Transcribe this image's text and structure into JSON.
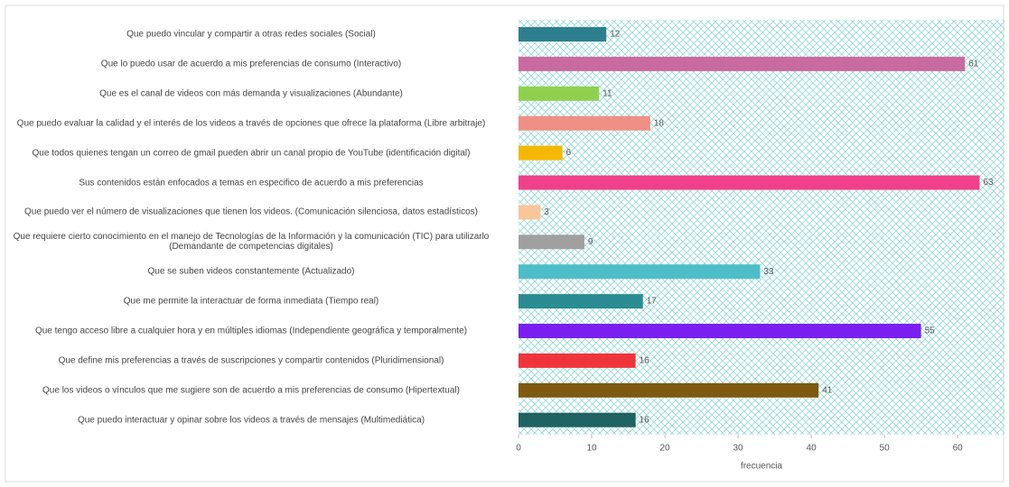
{
  "chart_data": {
    "type": "bar",
    "orientation": "horizontal",
    "categories": [
      "Que puedo vincular y compartir a otras redes sociales (Social)",
      "Que lo puedo usar de acuerdo a mis preferencias de consumo (Interactivo)",
      "Que es el canal de videos con más demanda y visualizaciones (Abundante)",
      "Que puedo evaluar la calidad y el interés de los videos a través de opciones que ofrece la plataforma (Libre arbitraje)",
      "Que todos quienes tengan un correo de gmail pueden abrir un canal propio de YouTube (identificación digital)",
      "Sus contenidos están enfocados a temas en especifico de acuerdo a mis preferencias",
      "Que puedo ver el número de visualizaciones que tienen los videos. (Comunicación silenciosa, datos estadísticos)",
      "Que requiere cierto conocimiento en el manejo de Tecnologías de la Información y la comunicación (TIC) para utilizarlo\n(Demandante de competencias digitales)",
      "Que se suben videos constantemente (Actualizado)",
      "Que me permite la interactuar de forma inmediata (Tiempo real)",
      "Que tengo acceso libre a cualquier hora y en múltiples idiomas (Independiente geográfica y temporalmente)",
      "Que define mis preferencias a través de suscripciones y compartir contenidos (Pluridimensional)",
      "Que los videos o vínculos que me sugiere son de acuerdo a mis preferencias de consumo (Hipertextual)",
      "Que puedo interactuar y opinar sobre los videos a través de mensajes (Multimediática)"
    ],
    "values": [
      12,
      61,
      11,
      18,
      6,
      63,
      3,
      9,
      33,
      17,
      55,
      16,
      41,
      16
    ],
    "colors": [
      "#2e7f8e",
      "#c96aa0",
      "#8fd14f",
      "#f08f85",
      "#f5b800",
      "#f0408a",
      "#f9c69a",
      "#a0a0a0",
      "#4dbdc8",
      "#2a8c92",
      "#7a1ff0",
      "#f0343c",
      "#7d5a10",
      "#1f6262"
    ],
    "xlabel": "frecuencia",
    "xlim": [
      0,
      66.4
    ],
    "xticks": [
      0,
      10,
      20,
      30,
      40,
      50,
      60
    ]
  }
}
